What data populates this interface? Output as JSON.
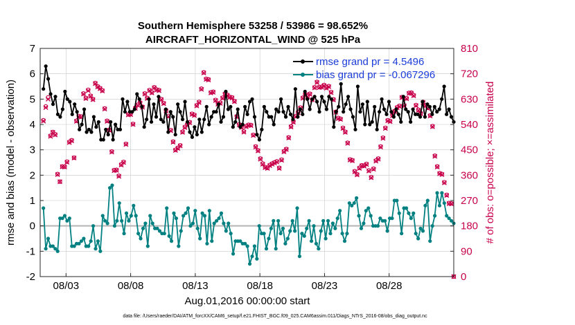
{
  "chart_data": {
    "type": "line",
    "title": "Southern Hemisphere 53258 / 53986 = 98.652%",
    "subtitle": "AIRCRAFT_HORIZONTAL_WIND @ 525 hPa",
    "xlabel": "Aug.01,2016 00:00:00 start",
    "ylabel": "rmse and bias (model - observation)",
    "ylabel_right": "# of obs: o=possible; ×=assimilated",
    "ylim": [
      -2,
      7
    ],
    "ylim_right": [
      0,
      810
    ],
    "xlim": [
      0,
      32
    ],
    "yticks": [
      "-2",
      "-1",
      "0",
      "1",
      "2",
      "3",
      "4",
      "5",
      "6",
      "7"
    ],
    "yticks_right": [
      "0",
      "90",
      "180",
      "270",
      "360",
      "450",
      "540",
      "630",
      "720",
      "810"
    ],
    "xtick_labels": [
      "08/03",
      "08/08",
      "08/13",
      "08/18",
      "08/23",
      "08/28"
    ],
    "xtick_positions": [
      2,
      7,
      12,
      17,
      22,
      27
    ],
    "legend_position": "top-right",
    "colors": {
      "rmse": "#000000",
      "bias": "#008080",
      "obs": "#c8004a",
      "grid": "#c8c8c8",
      "legend_text": "#1a3cd9"
    },
    "footnote": "data file: /Users/raeder/DAI/ATM_forcXX/CAM6_setup/f.e21.FHIST_BGC.f09_025.CAM6assim.011/Diags_NTrS_2016-08/obs_diag_output.nc",
    "series": [
      {
        "name": "rmse grand pr = 4.5496",
        "values": [
          5.4,
          6.3,
          5.8,
          5.2,
          4.8,
          5.1,
          4.4,
          4.3,
          4.6,
          5.3,
          5.0,
          4.9,
          4.4,
          4.8,
          4.5,
          3.8,
          4.0,
          4.6,
          3.7,
          3.8,
          3.7,
          4.3,
          3.9,
          4.1,
          3.4,
          3.4,
          3.8,
          3.6,
          4.1,
          3.4,
          4.0,
          3.8,
          3.8,
          5.0,
          4.5,
          4.9,
          4.5,
          4.5,
          4.6,
          5.2,
          5.0,
          4.7,
          3.9,
          4.2,
          5.0,
          4.1,
          4.8,
          4.3,
          5.1,
          4.2,
          4.1,
          4.6,
          3.7,
          4.5,
          4.3,
          3.6,
          4.8,
          4.5,
          4.2,
          4.9,
          4.1,
          3.7,
          3.5,
          3.9,
          3.6,
          4.2,
          3.7,
          4.2,
          4.7,
          4.0,
          4.3,
          4.5,
          4.5,
          4.8,
          4.1,
          4.3,
          5.3,
          4.6,
          4.7,
          3.9,
          4.1,
          4.6,
          3.9,
          4.0,
          4.7,
          4.4,
          4.9,
          5.0,
          4.3,
          3.6,
          3.4,
          3.8,
          4.7,
          4.5,
          4.3,
          4.3,
          4.0,
          4.6,
          4.5,
          5.0,
          4.5,
          4.3,
          4.7,
          4.4,
          4.2,
          5.4,
          4.3,
          4.6,
          4.4,
          5.3,
          5.0,
          4.6,
          5.0,
          5.1,
          4.9,
          4.5,
          5.1,
          4.9,
          4.6,
          5.1,
          5.0,
          3.9,
          4.5,
          4.7,
          5.6,
          4.5,
          4.8,
          5.1,
          4.6,
          4.3,
          3.8,
          5.5,
          4.5,
          4.8,
          4.0,
          4.9,
          4.0,
          4.1,
          4.7,
          3.8,
          4.5,
          5.0,
          4.6,
          4.4,
          4.9,
          4.5,
          4.3,
          4.6,
          4.4,
          4.1,
          5.1,
          4.6,
          4.5,
          4.1,
          4.6,
          4.4,
          4.4,
          4.3,
          4.9,
          4.3,
          4.8,
          4.7,
          4.4,
          4.7,
          4.5,
          4.6,
          5.0,
          5.5,
          4.4,
          4.6,
          4.3,
          4.1
        ]
      },
      {
        "name": "bias grand pr = -0.067296",
        "values": [
          0.7,
          -0.9,
          -0.5,
          -0.8,
          -0.8,
          -0.9,
          -1.0,
          0.3,
          0.3,
          0.4,
          0.2,
          0.3,
          -0.8,
          -0.8,
          -0.7,
          -0.7,
          -0.6,
          -0.5,
          -0.8,
          -0.8,
          -0.6,
          0.0,
          -0.9,
          -0.6,
          -1.0,
          0.4,
          0.2,
          0.1,
          1.5,
          1.6,
          0.0,
          0.2,
          0.9,
          0.2,
          -0.3,
          0.5,
          0.2,
          0.4,
          0.8,
          0.4,
          -0.3,
          -0.5,
          -0.1,
          0.1,
          -0.8,
          0.4,
          0.1,
          -0.1,
          -0.1,
          -0.2,
          -0.3,
          -0.3,
          0.7,
          -0.4,
          -0.6,
          0.5,
          0.3,
          -0.8,
          -0.2,
          0.4,
          0.5,
          0.7,
          0.0,
          0.1,
          0.6,
          -0.1,
          -0.5,
          0.5,
          0.4,
          -0.7,
          0.6,
          -0.6,
          0.1,
          0.2,
          0.3,
          0.5,
          0.1,
          -0.2,
          0.1,
          -0.3,
          -1.1,
          -0.6,
          -0.6,
          -0.6,
          -0.7,
          -0.7,
          -0.8,
          -1.5,
          -1.2,
          -0.8,
          -1.3,
          0.0,
          -0.3,
          -0.3,
          -0.9,
          -0.5,
          -0.1,
          0.2,
          -0.9,
          0.2,
          -0.3,
          -0.1,
          -0.7,
          -0.5,
          -0.2,
          0.2,
          -0.2,
          0.7,
          -1.2,
          -0.3,
          -0.4,
          -0.1,
          0.2,
          -0.6,
          0.0,
          -0.7,
          -0.9,
          -0.2,
          0.2,
          -0.5,
          0.2,
          -0.3,
          0.1,
          -0.1,
          0.3,
          0.6,
          -0.3,
          -0.6,
          -0.3,
          0.9,
          0.8,
          0.9,
          1.1,
          0.4,
          -0.1,
          0.1,
          0.6,
          0.7,
          0.4,
          0.0,
          0.0,
          0.0,
          0.3,
          0.2,
          0.2,
          -0.2,
          0.3,
          0.3,
          1.0,
          1.0,
          0.5,
          -0.3,
          0.7,
          0.7,
          0.5,
          0.3,
          0.5,
          -0.3,
          -0.5,
          -0.1,
          -0.2,
          0.8,
          1.0,
          -0.6,
          0.0,
          0.4,
          1.3,
          0.8,
          1.3,
          0.9,
          0.4,
          0.3,
          0.2,
          0.1
        ]
      }
    ],
    "obs_possible": [
      555,
      604,
      636,
      500,
      513,
      505,
      364,
      337,
      391,
      390,
      408,
      478,
      484,
      422,
      553,
      570,
      568,
      650,
      634,
      663,
      642,
      630,
      687,
      675,
      669,
      661,
      597,
      553,
      521,
      444,
      378,
      379,
      358,
      398,
      407,
      471,
      576,
      577,
      542,
      599,
      610,
      618,
      603,
      650,
      634,
      662,
      654,
      672,
      664,
      662,
      630,
      616,
      590,
      570,
      520,
      479,
      450,
      457,
      466,
      514,
      531,
      540,
      548,
      578,
      574,
      608,
      620,
      667,
      725,
      702,
      700,
      654,
      656,
      627,
      614,
      617,
      635,
      649,
      645,
      638,
      636,
      623,
      569,
      540,
      531,
      515,
      534,
      539,
      538,
      503,
      462,
      448,
      419,
      401,
      389,
      386,
      396,
      401,
      405,
      409,
      386,
      415,
      445,
      453,
      494,
      533,
      550,
      570,
      583,
      600,
      635,
      647,
      641,
      649,
      629,
      672,
      691,
      673,
      674,
      680,
      671,
      676,
      655,
      629,
      585,
      563,
      560,
      528,
      514,
      475,
      416,
      413,
      374,
      363,
      386,
      395,
      394,
      400,
      377,
      353,
      383,
      412,
      419,
      462,
      493,
      528,
      555,
      552,
      573,
      588,
      601,
      606,
      637,
      608,
      633,
      652,
      653,
      644,
      609,
      592,
      580,
      620,
      608,
      599,
      572,
      534,
      429,
      391,
      367,
      364,
      335,
      290,
      261,
      260,
      0
    ],
    "obs_assimilated": [
      552,
      600,
      630,
      498,
      512,
      503,
      362,
      337,
      390,
      389,
      406,
      476,
      482,
      421,
      551,
      568,
      566,
      648,
      632,
      660,
      640,
      628,
      685,
      673,
      667,
      659,
      595,
      551,
      519,
      442,
      376,
      377,
      356,
      396,
      405,
      469,
      574,
      575,
      540,
      597,
      608,
      616,
      601,
      648,
      632,
      660,
      652,
      670,
      662,
      660,
      628,
      614,
      588,
      568,
      518,
      477,
      448,
      455,
      464,
      512,
      529,
      538,
      546,
      576,
      572,
      606,
      618,
      665,
      723,
      700,
      698,
      652,
      654,
      625,
      612,
      615,
      633,
      647,
      643,
      636,
      634,
      621,
      567,
      538,
      529,
      513,
      532,
      537,
      536,
      501,
      460,
      446,
      417,
      399,
      387,
      384,
      394,
      399,
      403,
      407,
      384,
      413,
      443,
      451,
      492,
      531,
      548,
      568,
      581,
      598,
      633,
      645,
      639,
      647,
      627,
      670,
      689,
      671,
      672,
      678,
      669,
      674,
      653,
      627,
      583,
      561,
      558,
      526,
      512,
      473,
      414,
      411,
      372,
      361,
      384,
      393,
      392,
      398,
      375,
      351,
      381,
      410,
      417,
      460,
      491,
      526,
      553,
      550,
      571,
      586,
      599,
      604,
      635,
      606,
      631,
      650,
      651,
      642,
      607,
      590,
      578,
      618,
      606,
      597,
      570,
      532,
      427,
      389,
      365,
      362,
      333,
      288,
      259,
      258,
      0
    ]
  }
}
